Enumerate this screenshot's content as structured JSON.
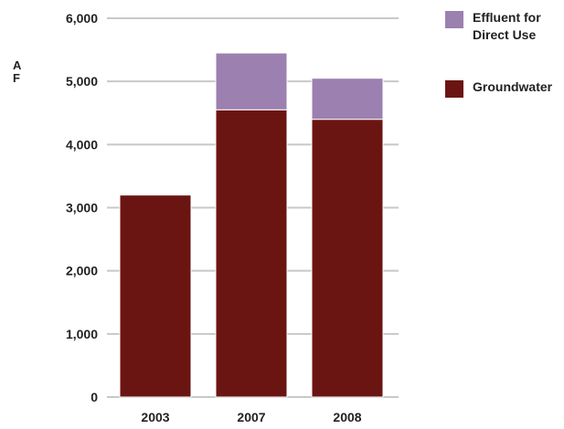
{
  "chart_data": {
    "type": "bar",
    "stacked": true,
    "categories": [
      "2003",
      "2007",
      "2008"
    ],
    "series": [
      {
        "name": "Groundwater",
        "values": [
          3200,
          4550,
          4400
        ],
        "color": "#6b1513"
      },
      {
        "name": "Effluent for Direct Use",
        "values": [
          0,
          900,
          650
        ],
        "color": "#9b80b0"
      }
    ],
    "ylabel": "A F",
    "ylabel_lines": [
      "A",
      "F"
    ],
    "ylim": [
      0,
      6000
    ],
    "yticks": [
      0,
      1000,
      2000,
      3000,
      4000,
      5000,
      6000
    ],
    "ytick_labels": [
      "0",
      "1,000",
      "2,000",
      "3,000",
      "4,000",
      "5,000",
      "6,000"
    ],
    "grid": true,
    "legend": {
      "placement": "top-right",
      "entries": [
        {
          "label_lines": [
            "Effluent for",
            "Direct Use"
          ],
          "color": "#9b80b0"
        },
        {
          "label_lines": [
            "Groundwater"
          ],
          "color": "#6b1513"
        }
      ]
    }
  }
}
